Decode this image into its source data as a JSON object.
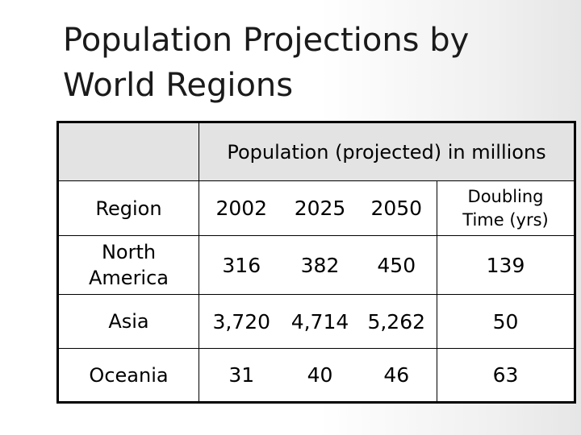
{
  "slide": {
    "title_line1": "Population Projections by",
    "title_line2": "World Regions"
  },
  "table": {
    "group_header": "Population (projected) in millions",
    "columns": {
      "region": "Region",
      "y2002": "2002",
      "y2025": "2025",
      "y2050": "2050",
      "doubling_line1": "Doubling",
      "doubling_line2": "Time (yrs)"
    },
    "rows": [
      {
        "region_line1": "North",
        "region_line2": "America",
        "y2002": "316",
        "y2025": "382",
        "y2050": "450",
        "doubling": "139"
      },
      {
        "region_line1": "Asia",
        "region_line2": "",
        "y2002": "3,720",
        "y2025": "4,714",
        "y2050": "5,262",
        "doubling": "50"
      },
      {
        "region_line1": "Oceania",
        "region_line2": "",
        "y2002": "31",
        "y2025": "40",
        "y2050": "46",
        "doubling": "63"
      }
    ]
  }
}
